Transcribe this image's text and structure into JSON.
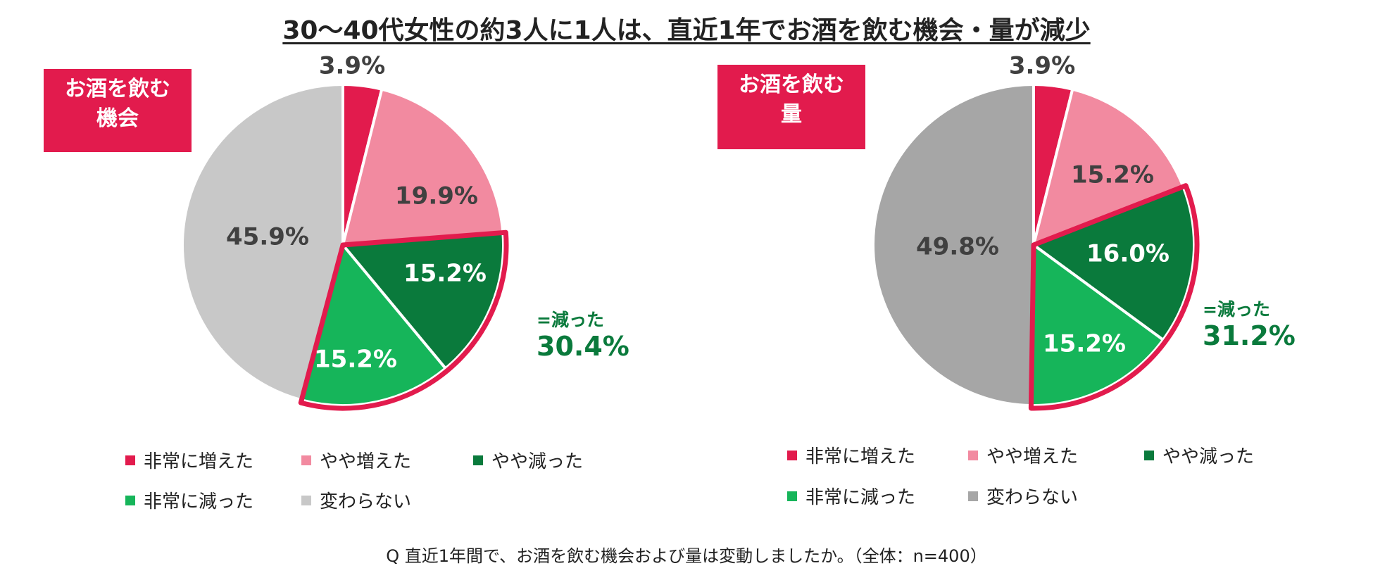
{
  "title": "30～40代女性の約3人に1人は、直近1年でお酒を飲む機会・量が減少",
  "footnote": "Q 直近1年間で、お酒を飲む機会および量は変動しましたか。（全体：n=400）",
  "colors": {
    "非常に増えた": "#e21b4d",
    "やや増えた": "#f28aa0",
    "やや減った": "#0a7a3c",
    "非常に減った": "#16b55a",
    "変わらない_1": "#c8c8c8",
    "変わらない_2": "#a6a6a6",
    "highlight": "#e21b4d",
    "decrease_text": "#0a7a3c",
    "dark_text": "#404040"
  },
  "chart_data": [
    {
      "type": "pie",
      "badge_lines": [
        "お酒を飲む",
        "機会"
      ],
      "categories": [
        "非常に増えた",
        "やや増えた",
        "やや減った",
        "非常に減った",
        "変わらない"
      ],
      "values": [
        3.9,
        19.9,
        15.2,
        15.2,
        45.9
      ],
      "labels": [
        "3.9%",
        "19.9%",
        "15.2%",
        "15.2%",
        "45.9%"
      ],
      "highlight_group": [
        "やや減った",
        "非常に減った"
      ],
      "annotation_label": "=減った",
      "annotation_value": "30.4%",
      "legend": [
        "非常に増えた",
        "やや増えた",
        "やや減った",
        "非常に減った",
        "変わらない"
      ]
    },
    {
      "type": "pie",
      "badge_lines": [
        "お酒を飲む",
        "量"
      ],
      "categories": [
        "非常に増えた",
        "やや増えた",
        "やや減った",
        "非常に減った",
        "変わらない"
      ],
      "values": [
        3.9,
        15.2,
        16.0,
        15.2,
        49.8
      ],
      "labels": [
        "3.9%",
        "15.2%",
        "16.0%",
        "15.2%",
        "49.8%"
      ],
      "highlight_group": [
        "やや減った",
        "非常に減った"
      ],
      "annotation_label": "=減った",
      "annotation_value": "31.2%",
      "legend": [
        "非常に増えた",
        "やや増えた",
        "やや減った",
        "非常に減った",
        "変わらない"
      ]
    }
  ]
}
